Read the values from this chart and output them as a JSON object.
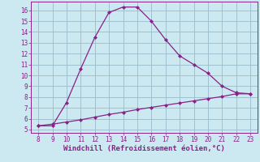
{
  "x_upper": [
    8,
    9,
    10,
    11,
    12,
    13,
    14,
    15,
    16,
    17,
    18,
    19,
    20,
    21,
    22,
    23
  ],
  "y_upper": [
    5.35,
    5.35,
    7.5,
    10.6,
    13.5,
    15.8,
    16.3,
    16.3,
    15.0,
    13.3,
    11.8,
    11.0,
    10.2,
    9.0,
    8.4,
    8.3
  ],
  "x_lower": [
    8,
    9,
    10,
    11,
    12,
    13,
    14,
    15,
    16,
    17,
    18,
    19,
    20,
    21,
    22,
    23
  ],
  "y_lower": [
    5.35,
    5.5,
    5.7,
    5.9,
    6.15,
    6.4,
    6.6,
    6.85,
    7.05,
    7.25,
    7.45,
    7.65,
    7.85,
    8.05,
    8.3,
    8.3
  ],
  "line_color": "#882288",
  "bg_color": "#cce8f0",
  "grid_color": "#99bbcc",
  "xlabel": "Windchill (Refroidissement éolien,°C)",
  "xlim": [
    7.5,
    23.5
  ],
  "ylim": [
    4.7,
    16.8
  ],
  "xticks": [
    8,
    9,
    10,
    11,
    12,
    13,
    14,
    15,
    16,
    17,
    18,
    19,
    20,
    21,
    22,
    23
  ],
  "yticks": [
    5,
    6,
    7,
    8,
    9,
    10,
    11,
    12,
    13,
    14,
    15,
    16
  ],
  "tick_fontsize": 5.5,
  "xlabel_fontsize": 6.5
}
